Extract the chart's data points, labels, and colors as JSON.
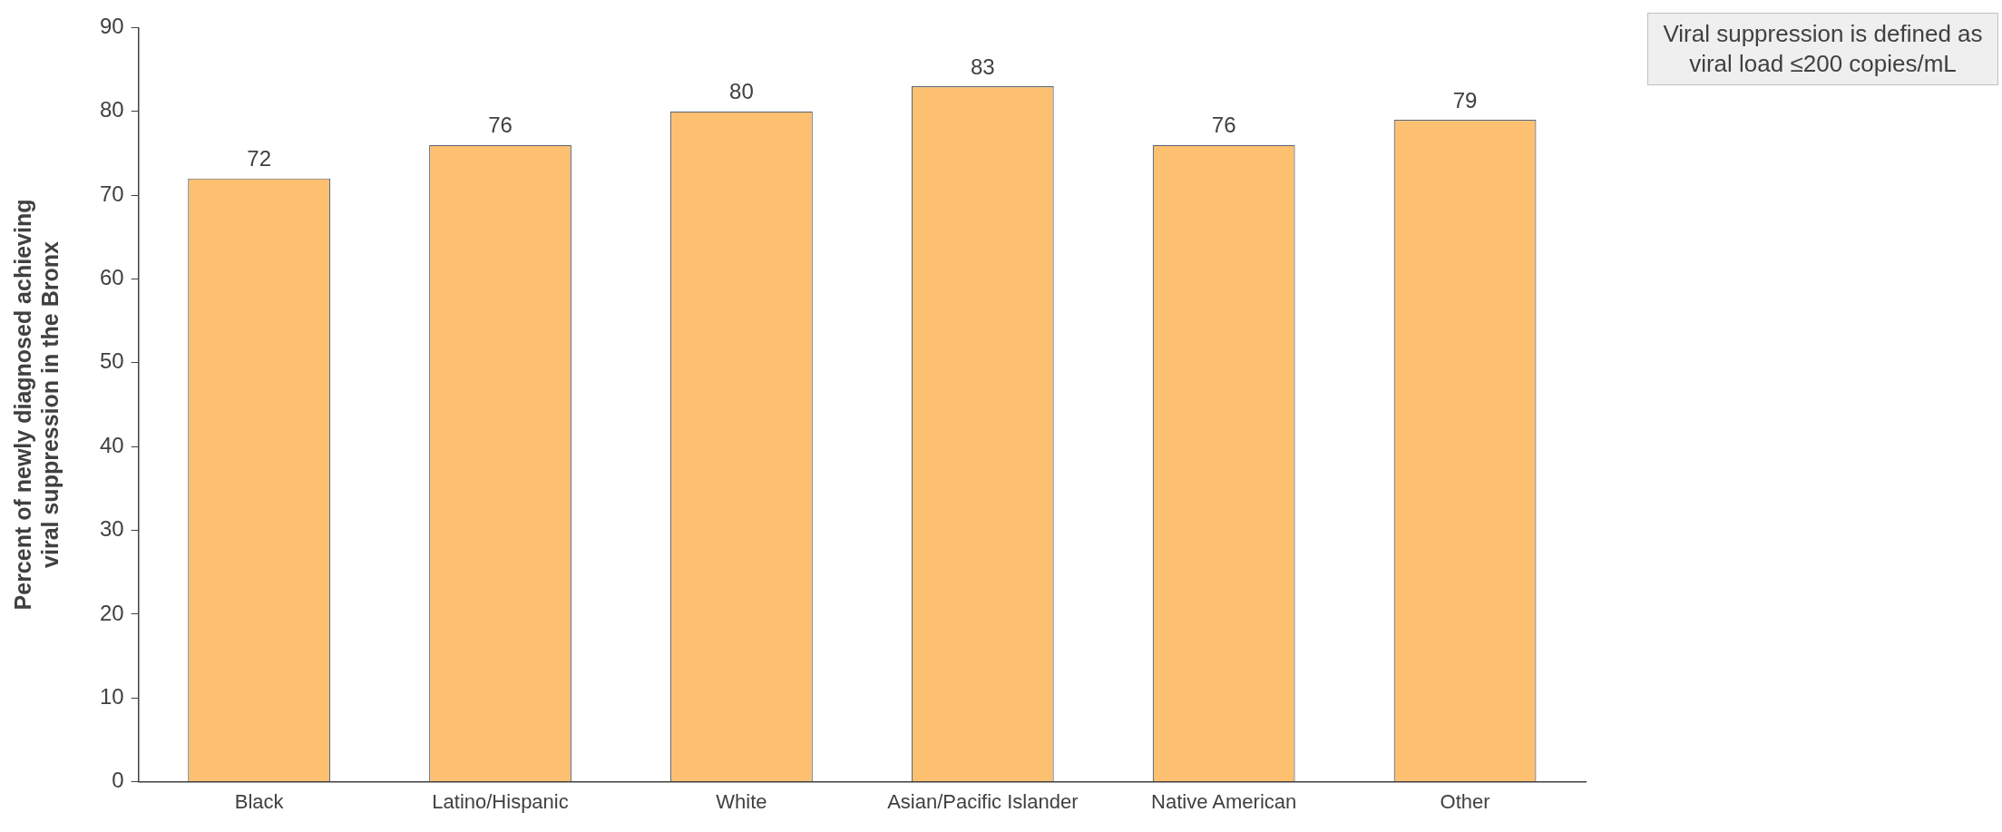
{
  "chart_data": {
    "type": "bar",
    "ylabel": "Percent of newly diagnosed achieving viral suppression in the Bronx",
    "categories": [
      "Black",
      "Latino/Hispanic",
      "White",
      "Asian/Pacific Islander",
      "Native American",
      "Other"
    ],
    "values": [
      72,
      76,
      80,
      83,
      76,
      79
    ],
    "color": "#fdbf70",
    "ylim": [
      0,
      90
    ],
    "yticks": [
      0,
      10,
      20,
      30,
      40,
      50,
      60,
      70,
      80,
      90
    ],
    "grid": false,
    "legend": false,
    "data_labels": true,
    "annotations": [
      "Viral suppression is defined as viral load ≤200 copies/mL"
    ]
  }
}
